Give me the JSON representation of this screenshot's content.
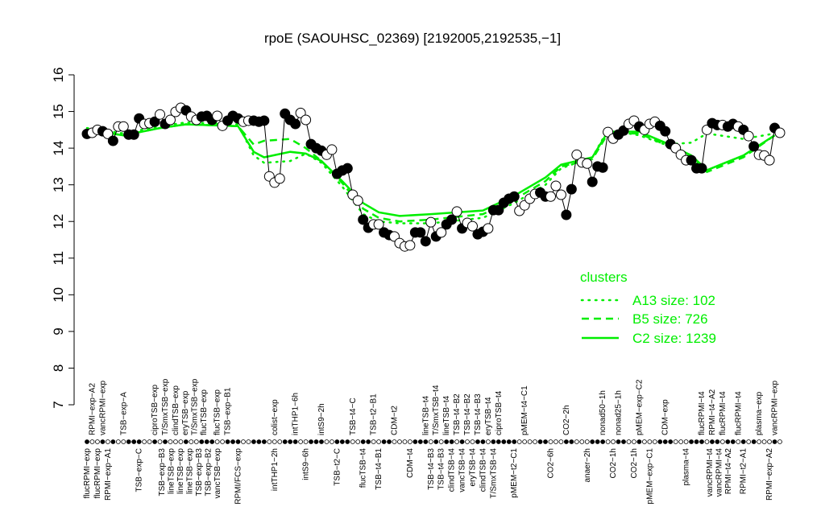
{
  "chart_data": {
    "type": "line",
    "title": "rpoE (SAOUHSC_02369) [2192005,2192535,−1]",
    "xlabel": "",
    "ylabel": "",
    "ylim": [
      7,
      16
    ],
    "yticks": [
      "7",
      "8",
      "9",
      "10",
      "11",
      "12",
      "13",
      "14",
      "15",
      "16"
    ],
    "grid": false,
    "legend_placement": "bottom-right",
    "colors": {
      "points": "#000000",
      "clusters": "#00ee00"
    },
    "points": [
      [
        1,
        14.39,
        1
      ],
      [
        2,
        14.42,
        0
      ],
      [
        3,
        14.5,
        0
      ],
      [
        4,
        14.46,
        1
      ],
      [
        5,
        14.39,
        0
      ],
      [
        6,
        14.2,
        1
      ],
      [
        7,
        14.59,
        0
      ],
      [
        8,
        14.59,
        0
      ],
      [
        9,
        14.37,
        1
      ],
      [
        10,
        14.37,
        1
      ],
      [
        11,
        14.81,
        1
      ],
      [
        12,
        14.66,
        0
      ],
      [
        13,
        14.68,
        0
      ],
      [
        14,
        14.72,
        1
      ],
      [
        15,
        14.92,
        0
      ],
      [
        16,
        14.66,
        1
      ],
      [
        17,
        14.77,
        0
      ],
      [
        18,
        14.99,
        0
      ],
      [
        19,
        15.1,
        0
      ],
      [
        20,
        15.03,
        1
      ],
      [
        21,
        14.86,
        0
      ],
      [
        22,
        14.77,
        0
      ],
      [
        23,
        14.86,
        1
      ],
      [
        24,
        14.88,
        1
      ],
      [
        25,
        14.77,
        1
      ],
      [
        26,
        14.88,
        0
      ],
      [
        27,
        14.61,
        0
      ],
      [
        28,
        14.75,
        1
      ],
      [
        29,
        14.88,
        1
      ],
      [
        30,
        14.81,
        1
      ],
      [
        31,
        14.72,
        0
      ],
      [
        32,
        14.75,
        0
      ],
      [
        33,
        14.75,
        1
      ],
      [
        34,
        14.72,
        1
      ],
      [
        35,
        14.75,
        1
      ],
      [
        36,
        13.23,
        0
      ],
      [
        37,
        13.06,
        0
      ],
      [
        38,
        13.17,
        0
      ],
      [
        39,
        14.94,
        1
      ],
      [
        40,
        14.77,
        1
      ],
      [
        41,
        14.66,
        1
      ],
      [
        42,
        14.96,
        0
      ],
      [
        43,
        14.77,
        0
      ],
      [
        44,
        14.11,
        1
      ],
      [
        45,
        14.0,
        1
      ],
      [
        46,
        13.93,
        1
      ],
      [
        47,
        13.82,
        0
      ],
      [
        48,
        13.96,
        0
      ],
      [
        49,
        13.3,
        1
      ],
      [
        50,
        13.39,
        1
      ],
      [
        51,
        13.45,
        1
      ],
      [
        52,
        12.73,
        0
      ],
      [
        53,
        12.57,
        0
      ],
      [
        54,
        12.05,
        1
      ],
      [
        55,
        11.83,
        1
      ],
      [
        56,
        11.92,
        0
      ],
      [
        57,
        11.92,
        0
      ],
      [
        58,
        11.7,
        1
      ],
      [
        59,
        11.63,
        1
      ],
      [
        60,
        11.59,
        0
      ],
      [
        61,
        11.41,
        0
      ],
      [
        62,
        11.32,
        0
      ],
      [
        63,
        11.35,
        0
      ],
      [
        64,
        11.7,
        1
      ],
      [
        65,
        11.7,
        1
      ],
      [
        66,
        11.46,
        1
      ],
      [
        67,
        11.98,
        0
      ],
      [
        68,
        11.59,
        1
      ],
      [
        69,
        11.7,
        0
      ],
      [
        70,
        11.92,
        1
      ],
      [
        71,
        12.05,
        1
      ],
      [
        72,
        12.27,
        0
      ],
      [
        73,
        11.81,
        1
      ],
      [
        74,
        11.96,
        0
      ],
      [
        75,
        11.87,
        0
      ],
      [
        76,
        11.65,
        1
      ],
      [
        77,
        11.72,
        1
      ],
      [
        78,
        11.81,
        0
      ],
      [
        79,
        12.31,
        1
      ],
      [
        80,
        12.31,
        1
      ],
      [
        81,
        12.51,
        1
      ],
      [
        82,
        12.62,
        1
      ],
      [
        83,
        12.68,
        1
      ],
      [
        84,
        12.29,
        0
      ],
      [
        85,
        12.44,
        0
      ],
      [
        86,
        12.62,
        0
      ],
      [
        87,
        12.75,
        0
      ],
      [
        88,
        12.79,
        1
      ],
      [
        89,
        12.68,
        1
      ],
      [
        90,
        12.68,
        0
      ],
      [
        91,
        12.97,
        0
      ],
      [
        92,
        12.73,
        0
      ],
      [
        93,
        12.18,
        1
      ],
      [
        94,
        12.88,
        1
      ],
      [
        95,
        13.82,
        0
      ],
      [
        96,
        13.61,
        0
      ],
      [
        97,
        13.58,
        0
      ],
      [
        98,
        13.08,
        1
      ],
      [
        99,
        13.5,
        1
      ],
      [
        100,
        13.47,
        1
      ],
      [
        101,
        14.44,
        0
      ],
      [
        102,
        14.26,
        0
      ],
      [
        103,
        14.37,
        1
      ],
      [
        104,
        14.48,
        1
      ],
      [
        105,
        14.66,
        0
      ],
      [
        106,
        14.75,
        0
      ],
      [
        107,
        14.59,
        1
      ],
      [
        108,
        14.5,
        0
      ],
      [
        109,
        14.66,
        0
      ],
      [
        110,
        14.72,
        0
      ],
      [
        111,
        14.61,
        1
      ],
      [
        112,
        14.46,
        1
      ],
      [
        113,
        14.11,
        1
      ],
      [
        114,
        14.0,
        0
      ],
      [
        115,
        13.82,
        0
      ],
      [
        116,
        13.67,
        0
      ],
      [
        117,
        13.67,
        1
      ],
      [
        118,
        13.45,
        1
      ],
      [
        119,
        13.45,
        1
      ],
      [
        120,
        14.5,
        0
      ],
      [
        121,
        14.68,
        1
      ],
      [
        122,
        14.63,
        1
      ],
      [
        123,
        14.63,
        0
      ],
      [
        124,
        14.59,
        1
      ],
      [
        125,
        14.66,
        1
      ],
      [
        126,
        14.59,
        0
      ],
      [
        127,
        14.5,
        1
      ],
      [
        128,
        14.33,
        0
      ],
      [
        129,
        14.05,
        1
      ],
      [
        130,
        13.82,
        0
      ],
      [
        131,
        13.8,
        0
      ],
      [
        132,
        13.67,
        0
      ],
      [
        133,
        14.55,
        1
      ],
      [
        134,
        14.42,
        0
      ]
    ],
    "series": [
      {
        "name": "C2 size: 1239",
        "style": "solid",
        "x": [
          1,
          8,
          15,
          20,
          30,
          33,
          35,
          40,
          43,
          46,
          50,
          54,
          57,
          61,
          67,
          77,
          83,
          89,
          92,
          98,
          101,
          107,
          112,
          117,
          120,
          127,
          133
        ],
        "y": [
          14.5,
          14.35,
          14.55,
          14.65,
          14.6,
          13.9,
          13.75,
          13.9,
          13.85,
          13.65,
          13.1,
          12.5,
          12.25,
          12.15,
          12.2,
          12.3,
          12.7,
          13.2,
          13.55,
          13.75,
          14.45,
          14.45,
          14.15,
          13.8,
          13.4,
          13.8,
          14.35
        ]
      },
      {
        "name": "B5 size: 726",
        "style": "dashed",
        "x": [
          1,
          8,
          15,
          20,
          30,
          33,
          35,
          40,
          43,
          46,
          50,
          54,
          57,
          61,
          67,
          77,
          83,
          89,
          92,
          98,
          101,
          107,
          112,
          117,
          120,
          127,
          133
        ],
        "y": [
          14.5,
          14.35,
          14.55,
          14.65,
          14.6,
          14.1,
          14.2,
          14.25,
          14.0,
          13.65,
          13.05,
          12.35,
          12.1,
          12.0,
          12.05,
          12.2,
          12.6,
          13.1,
          13.5,
          13.7,
          14.4,
          14.4,
          14.1,
          13.75,
          13.35,
          13.75,
          14.35
        ]
      },
      {
        "name": "A13 size: 102",
        "style": "dotted",
        "x": [
          1,
          8,
          15,
          20,
          30,
          33,
          35,
          40,
          43,
          46,
          50,
          54,
          57,
          61,
          67,
          77,
          83,
          89,
          92,
          98,
          101,
          107,
          112,
          117,
          120,
          127,
          133
        ],
        "y": [
          14.55,
          14.4,
          14.6,
          14.7,
          14.65,
          13.8,
          13.6,
          13.65,
          13.85,
          13.6,
          12.95,
          12.2,
          12.0,
          11.95,
          11.95,
          12.1,
          12.5,
          13.0,
          13.45,
          13.75,
          14.5,
          14.35,
          14.1,
          14.15,
          14.4,
          14.25,
          14.4
        ]
      }
    ],
    "legend_title": "clusters",
    "top_labels": [
      {
        "x": 2,
        "label": "RPMI−exp−A2"
      },
      {
        "x": 4,
        "label": "vancRPMI−exp"
      },
      {
        "x": 8,
        "label": "TSB−exp−A"
      },
      {
        "x": 14,
        "label": "ciproTSB−exp"
      },
      {
        "x": 16,
        "label": "T/SmxTSB−exp"
      },
      {
        "x": 18,
        "label": "clindTSB−exp"
      },
      {
        "x": 20,
        "label": "eryTSB−exp"
      },
      {
        "x": 22,
        "label": "T/SmxTSB−exp"
      },
      {
        "x": 23,
        "label": "flucTSB−exp"
      },
      {
        "x": 26,
        "label": "flucTSB−exp"
      },
      {
        "x": 28,
        "label": "TSB−exp−B1"
      },
      {
        "x": 37,
        "label": "colist−exp"
      },
      {
        "x": 41,
        "label": "intTHP1−6h"
      },
      {
        "x": 46,
        "label": "intS9−2h"
      },
      {
        "x": 52,
        "label": "TSB−t4−C"
      },
      {
        "x": 56,
        "label": "TSB−t2−B1"
      },
      {
        "x": 60,
        "label": "CDM−t2"
      },
      {
        "x": 66,
        "label": "lineTSB−t4"
      },
      {
        "x": 68,
        "label": "T/SmxTSB−t4"
      },
      {
        "x": 70,
        "label": "lineTSB−t4"
      },
      {
        "x": 72,
        "label": "TSB−t4−B2"
      },
      {
        "x": 74,
        "label": "TSB−t4−B2"
      },
      {
        "x": 76,
        "label": "TSB−t4−B3"
      },
      {
        "x": 78,
        "label": "eryTSB−t4"
      },
      {
        "x": 80,
        "label": "ciproTSB−t4"
      },
      {
        "x": 85,
        "label": "pMEM−t4−C1"
      },
      {
        "x": 93,
        "label": "CO2−2h"
      },
      {
        "x": 100,
        "label": "nonad50−1h"
      },
      {
        "x": 103,
        "label": "nonad25−1h"
      },
      {
        "x": 107,
        "label": "pMEM−exp−C2"
      },
      {
        "x": 112,
        "label": "CDM−exp"
      },
      {
        "x": 119,
        "label": "flucRPMI−t4"
      },
      {
        "x": 121,
        "label": "RPMI−t4−A2"
      },
      {
        "x": 123,
        "label": "flucRPMI−t4"
      },
      {
        "x": 126,
        "label": "flucRPMI−t4"
      },
      {
        "x": 130,
        "label": "plasma−exp"
      },
      {
        "x": 133,
        "label": "vancRPMI−exp"
      }
    ],
    "bottom_labels": [
      {
        "x": 1,
        "label": "flucRPMI−exp"
      },
      {
        "x": 3,
        "label": "flucRPMI−exp"
      },
      {
        "x": 5,
        "label": "RPMI−exp−A1"
      },
      {
        "x": 11,
        "label": "TSB−exp−C"
      },
      {
        "x": 16,
        "label": "TSB−exp−B3"
      },
      {
        "x": 17,
        "label": "lineTSB−exp"
      },
      {
        "x": 19,
        "label": "lineTSB−exp"
      },
      {
        "x": 21,
        "label": "lineTSB−exp"
      },
      {
        "x": 22,
        "label": "TSB−exp−B3"
      },
      {
        "x": 24,
        "label": "TSB−exp−B2"
      },
      {
        "x": 26,
        "label": "vancTSB−exp"
      },
      {
        "x": 30,
        "label": "RPMI/FCS−exp"
      },
      {
        "x": 37,
        "label": "intTHP1−2h"
      },
      {
        "x": 43,
        "label": "intS9−6h"
      },
      {
        "x": 49,
        "label": "TSB−t2−C"
      },
      {
        "x": 54,
        "label": "flucTSB−t4"
      },
      {
        "x": 57,
        "label": "TSB−t4−B1"
      },
      {
        "x": 63,
        "label": "CDM−t4"
      },
      {
        "x": 67,
        "label": "TSB−t4−B3"
      },
      {
        "x": 69,
        "label": "TSB−t4−B3"
      },
      {
        "x": 71,
        "label": "clindTSB−t4"
      },
      {
        "x": 73,
        "label": "vancTSB−t4"
      },
      {
        "x": 75,
        "label": "eryTSB−t4"
      },
      {
        "x": 77,
        "label": "clindTSB−t4"
      },
      {
        "x": 79,
        "label": "T/SmxTSB−t4"
      },
      {
        "x": 83,
        "label": "pMEM−t2−C1"
      },
      {
        "x": 90,
        "label": "CO2−6h"
      },
      {
        "x": 97,
        "label": "anaer−2h"
      },
      {
        "x": 102,
        "label": "CO2−1h"
      },
      {
        "x": 106,
        "label": "CO2−1h"
      },
      {
        "x": 109,
        "label": "pMEM−exp−C1"
      },
      {
        "x": 116,
        "label": "plasma−t4"
      },
      {
        "x": 121,
        "label": "vancRPMI−t4"
      },
      {
        "x": 122,
        "label": "vancRPMI−t4"
      },
      {
        "x": 124,
        "label": "RPMI−t4−A2"
      },
      {
        "x": 127,
        "label": "RPMI−t2−A1"
      },
      {
        "x": 132,
        "label": "RPMI−exp−A2"
      }
    ]
  }
}
